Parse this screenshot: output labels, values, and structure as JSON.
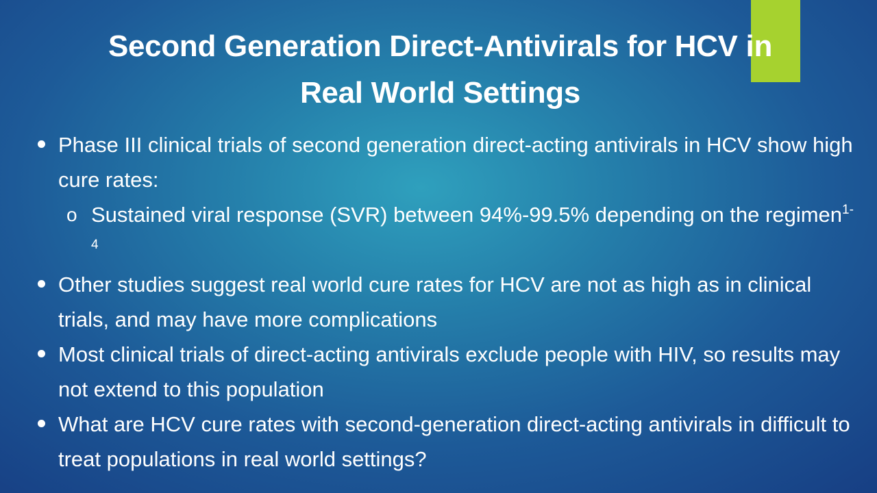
{
  "slide": {
    "title_line1": "Second Generation Direct-Antivirals for HCV in",
    "title_line2": "Real World Settings",
    "accent_color": "#a6d22f",
    "bullets": [
      {
        "text": "Phase III clinical trials of second generation direct-acting antivirals in HCV show high cure rates:",
        "sub": {
          "marker": "o",
          "text": "Sustained viral response (SVR) between 94%-99.5% depending on the regimen",
          "superscript": "1-4"
        }
      },
      {
        "text": "Other studies suggest real world cure rates for HCV are not as high as in clinical trials, and may have more complications"
      },
      {
        "text": "Most clinical trials of direct-acting antivirals exclude people with HIV, so results may not extend to this population"
      },
      {
        "text": "What are HCV cure rates with second-generation direct-acting antivirals in difficult to treat populations in real world settings?"
      }
    ]
  }
}
